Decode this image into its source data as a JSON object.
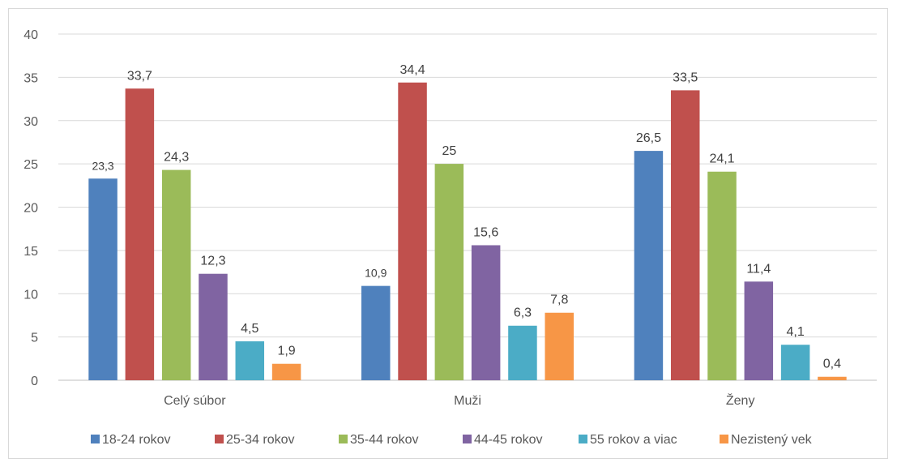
{
  "chart_data": {
    "type": "bar",
    "title": "",
    "xlabel": "",
    "ylabel": "",
    "ylim": [
      0,
      40
    ],
    "yticks": [
      0,
      5,
      10,
      15,
      20,
      25,
      30,
      35,
      40
    ],
    "grid": true,
    "legend_position": "bottom",
    "categories": [
      "Celý súbor",
      "Muži",
      "Ženy"
    ],
    "series": [
      {
        "name": "18-24 rokov",
        "color": "#4F81BD",
        "values": [
          23.3,
          10.9,
          26.5
        ],
        "labels": [
          "23,3",
          "10,9",
          "26,5"
        ]
      },
      {
        "name": "25-34 rokov",
        "color": "#C0504D",
        "values": [
          33.7,
          34.4,
          33.5
        ],
        "labels": [
          "33,7",
          "34,4",
          "33,5"
        ]
      },
      {
        "name": "35-44 rokov",
        "color": "#9BBB59",
        "values": [
          24.3,
          25,
          24.1
        ],
        "labels": [
          "24,3",
          "25",
          "24,1"
        ]
      },
      {
        "name": "44-45 rokov",
        "color": "#8064A2",
        "values": [
          12.3,
          15.6,
          11.4
        ],
        "labels": [
          "12,3",
          "15,6",
          "11,4"
        ]
      },
      {
        "name": "55 rokov a viac",
        "color": "#4BACC6",
        "values": [
          4.5,
          6.3,
          4.1
        ],
        "labels": [
          "4,5",
          "6,3",
          "4,1"
        ]
      },
      {
        "name": "Nezistený vek",
        "color": "#F79646",
        "values": [
          1.9,
          7.8,
          0.4
        ],
        "labels": [
          "1,9",
          "7,8",
          "0,4"
        ]
      }
    ]
  }
}
